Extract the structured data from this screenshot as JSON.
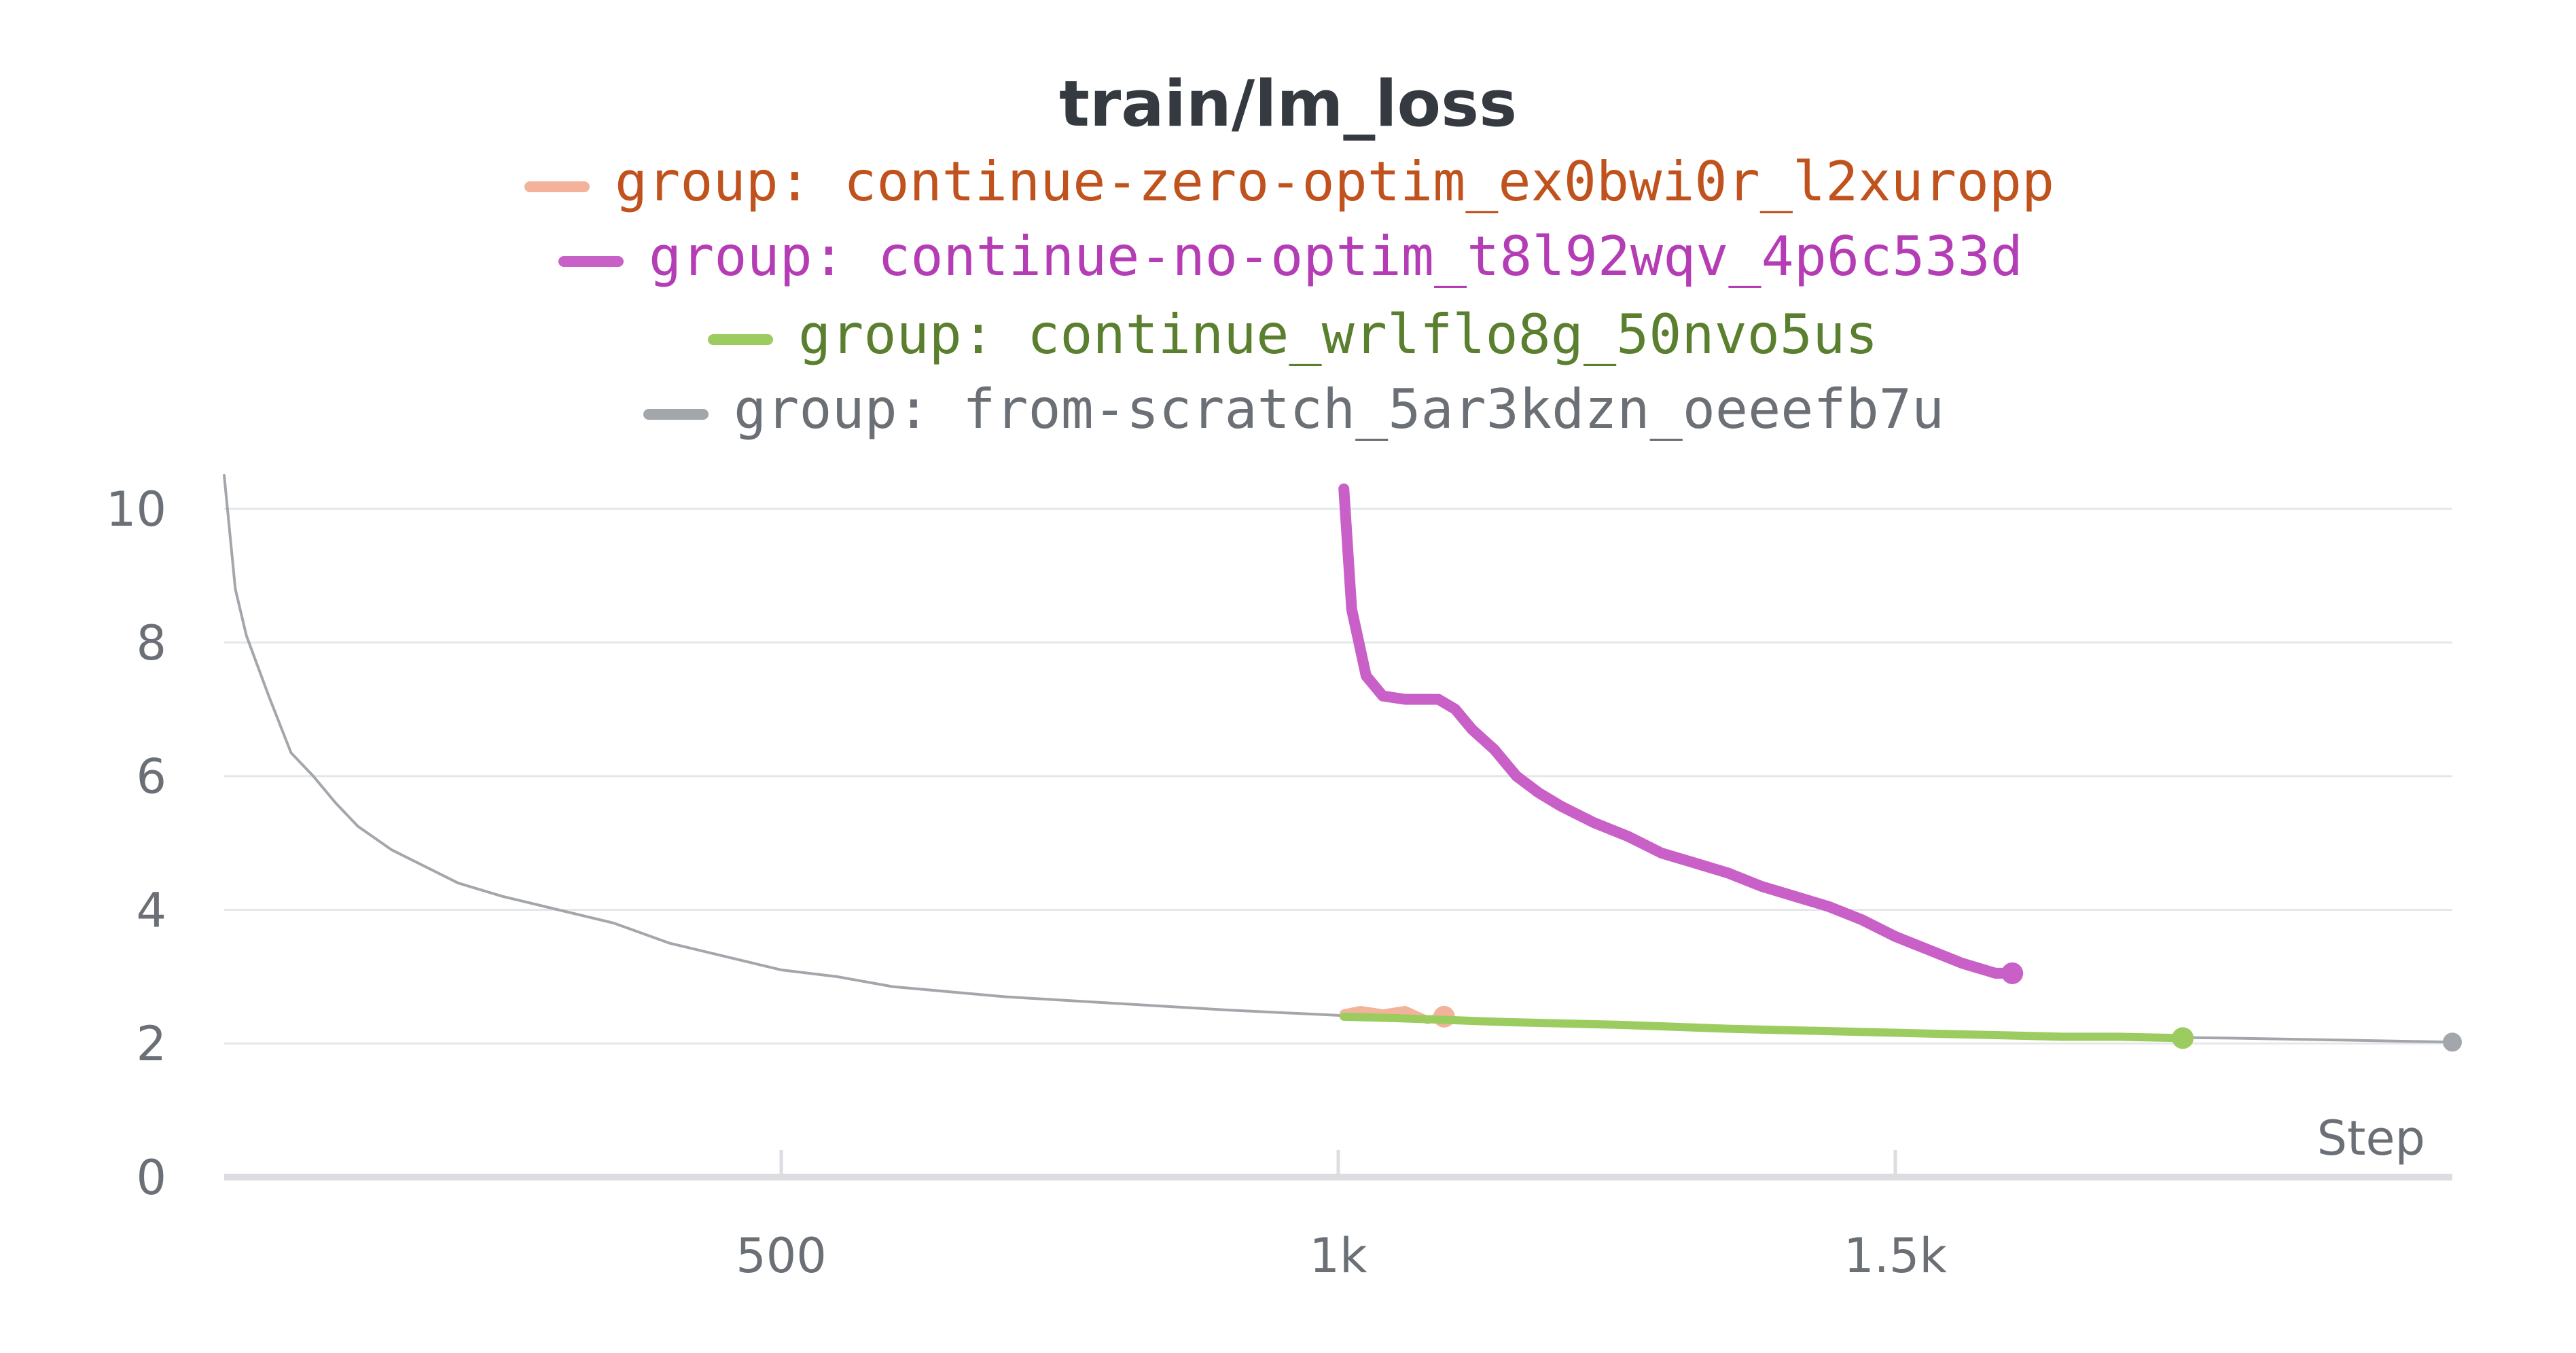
{
  "chart_data": {
    "type": "line",
    "title": "train/lm_loss",
    "xlabel": "Step",
    "ylabel": "",
    "xlim": [
      0,
      2000
    ],
    "ylim": [
      0,
      10.5
    ],
    "x_ticks": [
      {
        "value": 500,
        "label": "500"
      },
      {
        "value": 1000,
        "label": "1k"
      },
      {
        "value": 1500,
        "label": "1.5k"
      }
    ],
    "y_ticks": [
      {
        "value": 0,
        "label": "0"
      },
      {
        "value": 2,
        "label": "2"
      },
      {
        "value": 4,
        "label": "4"
      },
      {
        "value": 6,
        "label": "6"
      },
      {
        "value": 8,
        "label": "8"
      },
      {
        "value": 10,
        "label": "10"
      }
    ],
    "grid": true,
    "legend_position": "top-center",
    "series": [
      {
        "name": "group: continue-zero-optim_ex0bwi0r_l2xuropp",
        "color": "#f2b39a",
        "text_color": "#c0531d",
        "x": [
          1005,
          1020,
          1040,
          1060,
          1080,
          1095
        ],
        "y": [
          2.45,
          2.5,
          2.45,
          2.5,
          2.35,
          2.4
        ]
      },
      {
        "name": "group: continue-no-optim_t8l92wqv_4p6c533d",
        "color": "#c960c8",
        "text_color": "#b43db6",
        "x": [
          1005,
          1012,
          1025,
          1040,
          1060,
          1075,
          1090,
          1105,
          1120,
          1140,
          1160,
          1180,
          1200,
          1230,
          1260,
          1290,
          1320,
          1350,
          1380,
          1410,
          1440,
          1470,
          1500,
          1530,
          1560,
          1590,
          1605
        ],
        "y": [
          10.3,
          8.5,
          7.5,
          7.2,
          7.15,
          7.15,
          7.15,
          7.0,
          6.7,
          6.4,
          6.0,
          5.75,
          5.55,
          5.3,
          5.1,
          4.85,
          4.7,
          4.55,
          4.35,
          4.2,
          4.05,
          3.85,
          3.6,
          3.4,
          3.2,
          3.05,
          3.05
        ]
      },
      {
        "name": "group: continue_wrlflo8g_50nvo5us",
        "color": "#9ccc5f",
        "text_color": "#5a7f2e",
        "x": [
          1005,
          1050,
          1100,
          1150,
          1200,
          1250,
          1300,
          1350,
          1400,
          1450,
          1500,
          1550,
          1600,
          1650,
          1700,
          1758
        ],
        "y": [
          2.4,
          2.38,
          2.35,
          2.32,
          2.3,
          2.28,
          2.25,
          2.22,
          2.2,
          2.18,
          2.16,
          2.14,
          2.12,
          2.1,
          2.1,
          2.08
        ]
      },
      {
        "name": "group: from-scratch_5ar3kdzn_oeeefb7u",
        "color": "#a3a7ab",
        "text_color": "#6b6f76",
        "x": [
          0,
          10,
          20,
          40,
          60,
          80,
          100,
          120,
          150,
          180,
          210,
          250,
          300,
          350,
          400,
          450,
          500,
          550,
          600,
          700,
          800,
          900,
          1000,
          1100,
          1200,
          1300,
          1400,
          1500,
          1600,
          1700,
          1800,
          1900,
          2000
        ],
        "y": [
          10.5,
          8.8,
          8.1,
          7.2,
          6.35,
          6.0,
          5.6,
          5.25,
          4.9,
          4.65,
          4.4,
          4.2,
          4.0,
          3.8,
          3.5,
          3.3,
          3.1,
          3.0,
          2.85,
          2.7,
          2.6,
          2.5,
          2.42,
          2.35,
          2.3,
          2.25,
          2.2,
          2.18,
          2.15,
          2.1,
          2.08,
          2.05,
          2.02
        ]
      }
    ]
  }
}
